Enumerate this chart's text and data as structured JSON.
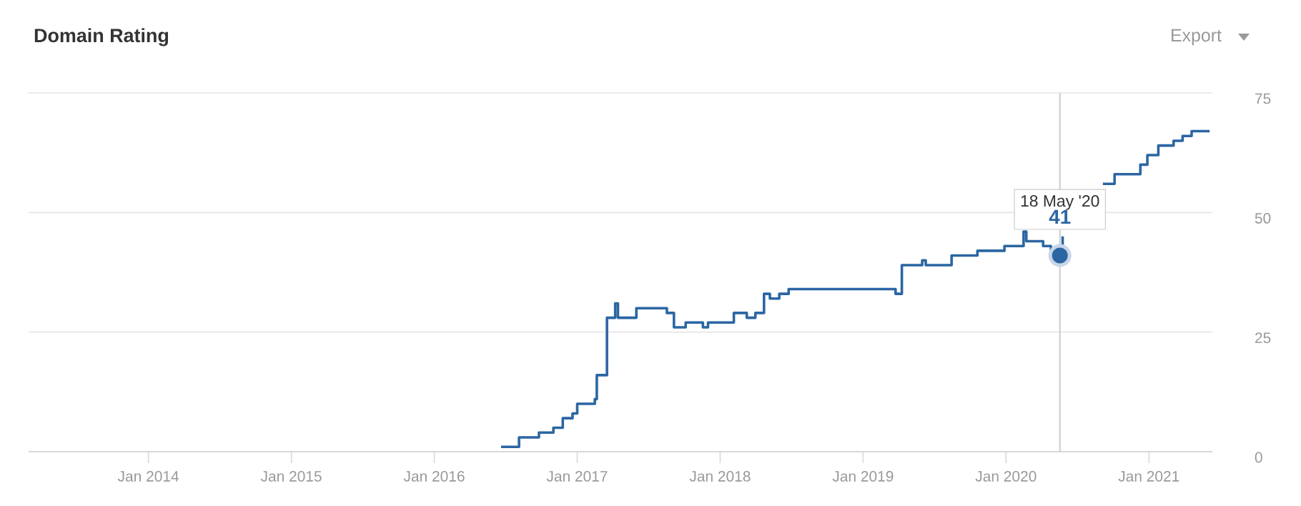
{
  "chart_data": {
    "type": "step",
    "title": "Domain Rating",
    "annotations": [
      "Export",
      {
        "text": "18 May '20",
        "x": "2020-05-18",
        "y": 41
      },
      {
        "text": "41",
        "x": "2020-05-18",
        "y": 41
      }
    ],
    "x": [
      "2016-06-20",
      "2016-08-05",
      "2016-09-25",
      "2016-11-01",
      "2016-11-25",
      "2016-12-20",
      "2017-01-01",
      "2017-02-15",
      "2017-02-20",
      "2017-03-18",
      "2017-04-08",
      "2017-04-15",
      "2017-06-01",
      "2017-08-18",
      "2017-09-05",
      "2017-10-05",
      "2017-11-18",
      "2017-12-01",
      "2018-02-05",
      "2018-03-10",
      "2018-04-01",
      "2018-04-23",
      "2018-05-08",
      "2018-06-01",
      "2018-06-25",
      "2019-03-25",
      "2019-04-10",
      "2019-06-01",
      "2019-06-10",
      "2019-08-15",
      "2019-10-20",
      "2019-12-28",
      "2020-02-15",
      "2020-02-22",
      "2020-04-05",
      "2020-04-25",
      "2020-05-18",
      "2020-05-25",
      "2020-06-01",
      "2020-09-05",
      "2020-10-05",
      "2020-12-10",
      "2020-12-28",
      "2021-01-25",
      "2021-03-05",
      "2021-03-28",
      "2021-04-20",
      "2021-06-05"
    ],
    "series": [
      {
        "color": "#2b66a3",
        "values": [
          1,
          3,
          4,
          5,
          7,
          8,
          10,
          11,
          16,
          28,
          31,
          28,
          30,
          29,
          26,
          27,
          26,
          27,
          29,
          28,
          29,
          33,
          32,
          33,
          34,
          33,
          39,
          40,
          39,
          41,
          42,
          43,
          46,
          44,
          43,
          42,
          41,
          45,
          null,
          56,
          58,
          60,
          62,
          64,
          65,
          66,
          67,
          67
        ]
      }
    ],
    "xlim": [
      "2013-03-01",
      "2021-06-12"
    ],
    "xticks": [
      {
        "value": "2014-01-01",
        "label": "Jan 2014"
      },
      {
        "value": "2015-01-01",
        "label": "Jan 2015"
      },
      {
        "value": "2016-01-01",
        "label": "Jan 2016"
      },
      {
        "value": "2017-01-01",
        "label": "Jan 2017"
      },
      {
        "value": "2018-01-01",
        "label": "Jan 2018"
      },
      {
        "value": "2019-01-01",
        "label": "Jan 2019"
      },
      {
        "value": "2020-01-01",
        "label": "Jan 2020"
      },
      {
        "value": "2021-01-01",
        "label": "Jan 2021"
      }
    ],
    "ylim": [
      0,
      75
    ],
    "yticks": [
      0,
      25,
      50,
      75
    ],
    "grid": "y",
    "ref_lines": [
      {
        "axis": "x",
        "value": "2020-05-18",
        "color": "#cccccc"
      }
    ]
  }
}
